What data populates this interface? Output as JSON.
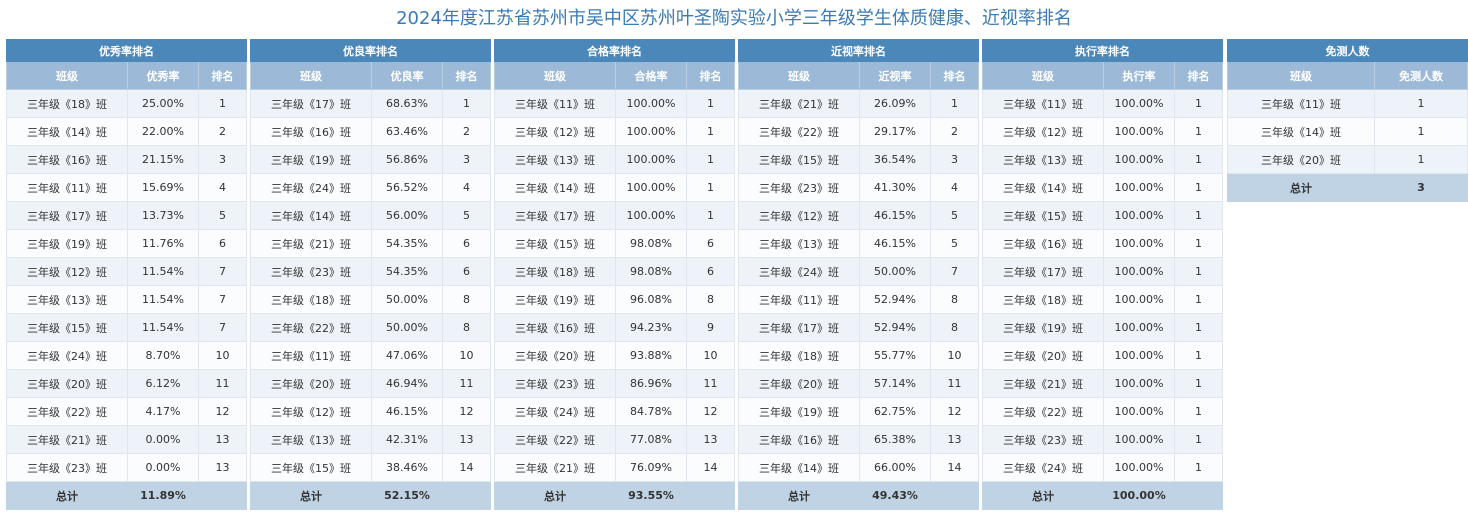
{
  "title": "2024年度江苏省苏州市吴中区苏州叶圣陶实验小学三年级学生体质健康、近视率排名",
  "tables": [
    {
      "caption": "优秀率排名",
      "headers": [
        "班级",
        "优秀率",
        "排名"
      ],
      "rows": [
        [
          "三年级《18》班",
          "25.00%",
          "1"
        ],
        [
          "三年级《14》班",
          "22.00%",
          "2"
        ],
        [
          "三年级《16》班",
          "21.15%",
          "3"
        ],
        [
          "三年级《11》班",
          "15.69%",
          "4"
        ],
        [
          "三年级《17》班",
          "13.73%",
          "5"
        ],
        [
          "三年级《19》班",
          "11.76%",
          "6"
        ],
        [
          "三年级《12》班",
          "11.54%",
          "7"
        ],
        [
          "三年级《13》班",
          "11.54%",
          "7"
        ],
        [
          "三年级《15》班",
          "11.54%",
          "7"
        ],
        [
          "三年级《24》班",
          "8.70%",
          "10"
        ],
        [
          "三年级《20》班",
          "6.12%",
          "11"
        ],
        [
          "三年级《22》班",
          "4.17%",
          "12"
        ],
        [
          "三年级《21》班",
          "0.00%",
          "13"
        ],
        [
          "三年级《23》班",
          "0.00%",
          "13"
        ]
      ],
      "total": [
        "总计",
        "11.89%",
        ""
      ]
    },
    {
      "caption": "优良率排名",
      "headers": [
        "班级",
        "优良率",
        "排名"
      ],
      "rows": [
        [
          "三年级《17》班",
          "68.63%",
          "1"
        ],
        [
          "三年级《16》班",
          "63.46%",
          "2"
        ],
        [
          "三年级《19》班",
          "56.86%",
          "3"
        ],
        [
          "三年级《24》班",
          "56.52%",
          "4"
        ],
        [
          "三年级《14》班",
          "56.00%",
          "5"
        ],
        [
          "三年级《21》班",
          "54.35%",
          "6"
        ],
        [
          "三年级《23》班",
          "54.35%",
          "6"
        ],
        [
          "三年级《18》班",
          "50.00%",
          "8"
        ],
        [
          "三年级《22》班",
          "50.00%",
          "8"
        ],
        [
          "三年级《11》班",
          "47.06%",
          "10"
        ],
        [
          "三年级《20》班",
          "46.94%",
          "11"
        ],
        [
          "三年级《12》班",
          "46.15%",
          "12"
        ],
        [
          "三年级《13》班",
          "42.31%",
          "13"
        ],
        [
          "三年级《15》班",
          "38.46%",
          "14"
        ]
      ],
      "total": [
        "总计",
        "52.15%",
        ""
      ]
    },
    {
      "caption": "合格率排名",
      "headers": [
        "班级",
        "合格率",
        "排名"
      ],
      "rows": [
        [
          "三年级《11》班",
          "100.00%",
          "1"
        ],
        [
          "三年级《12》班",
          "100.00%",
          "1"
        ],
        [
          "三年级《13》班",
          "100.00%",
          "1"
        ],
        [
          "三年级《14》班",
          "100.00%",
          "1"
        ],
        [
          "三年级《17》班",
          "100.00%",
          "1"
        ],
        [
          "三年级《15》班",
          "98.08%",
          "6"
        ],
        [
          "三年级《18》班",
          "98.08%",
          "6"
        ],
        [
          "三年级《19》班",
          "96.08%",
          "8"
        ],
        [
          "三年级《16》班",
          "94.23%",
          "9"
        ],
        [
          "三年级《20》班",
          "93.88%",
          "10"
        ],
        [
          "三年级《23》班",
          "86.96%",
          "11"
        ],
        [
          "三年级《24》班",
          "84.78%",
          "12"
        ],
        [
          "三年级《22》班",
          "77.08%",
          "13"
        ],
        [
          "三年级《21》班",
          "76.09%",
          "14"
        ]
      ],
      "total": [
        "总计",
        "93.55%",
        ""
      ]
    },
    {
      "caption": "近视率排名",
      "headers": [
        "班级",
        "近视率",
        "排名"
      ],
      "rows": [
        [
          "三年级《21》班",
          "26.09%",
          "1"
        ],
        [
          "三年级《22》班",
          "29.17%",
          "2"
        ],
        [
          "三年级《15》班",
          "36.54%",
          "3"
        ],
        [
          "三年级《23》班",
          "41.30%",
          "4"
        ],
        [
          "三年级《12》班",
          "46.15%",
          "5"
        ],
        [
          "三年级《13》班",
          "46.15%",
          "5"
        ],
        [
          "三年级《24》班",
          "50.00%",
          "7"
        ],
        [
          "三年级《11》班",
          "52.94%",
          "8"
        ],
        [
          "三年级《17》班",
          "52.94%",
          "8"
        ],
        [
          "三年级《18》班",
          "55.77%",
          "10"
        ],
        [
          "三年级《20》班",
          "57.14%",
          "11"
        ],
        [
          "三年级《19》班",
          "62.75%",
          "12"
        ],
        [
          "三年级《16》班",
          "65.38%",
          "13"
        ],
        [
          "三年级《14》班",
          "66.00%",
          "14"
        ]
      ],
      "total": [
        "总计",
        "49.43%",
        ""
      ]
    },
    {
      "caption": "执行率排名",
      "headers": [
        "班级",
        "执行率",
        "排名"
      ],
      "rows": [
        [
          "三年级《11》班",
          "100.00%",
          "1"
        ],
        [
          "三年级《12》班",
          "100.00%",
          "1"
        ],
        [
          "三年级《13》班",
          "100.00%",
          "1"
        ],
        [
          "三年级《14》班",
          "100.00%",
          "1"
        ],
        [
          "三年级《15》班",
          "100.00%",
          "1"
        ],
        [
          "三年级《16》班",
          "100.00%",
          "1"
        ],
        [
          "三年级《17》班",
          "100.00%",
          "1"
        ],
        [
          "三年级《18》班",
          "100.00%",
          "1"
        ],
        [
          "三年级《19》班",
          "100.00%",
          "1"
        ],
        [
          "三年级《20》班",
          "100.00%",
          "1"
        ],
        [
          "三年级《21》班",
          "100.00%",
          "1"
        ],
        [
          "三年级《22》班",
          "100.00%",
          "1"
        ],
        [
          "三年级《23》班",
          "100.00%",
          "1"
        ],
        [
          "三年级《24》班",
          "100.00%",
          "1"
        ]
      ],
      "total": [
        "总计",
        "100.00%",
        ""
      ]
    },
    {
      "caption": "免测人数",
      "headers": [
        "班级",
        "免测人数"
      ],
      "rows": [
        [
          "三年级《11》班",
          "1"
        ],
        [
          "三年级《14》班",
          "1"
        ],
        [
          "三年级《20》班",
          "1"
        ]
      ],
      "total": [
        "总计",
        "3"
      ]
    }
  ],
  "colors": {
    "title": "#3a7bb5",
    "caption_bg": "#4c87b9",
    "header_bg": "#9cbad7",
    "row_odd": "#eef3f9",
    "row_even": "#fafcfe",
    "total_bg": "#bfd3e4"
  }
}
